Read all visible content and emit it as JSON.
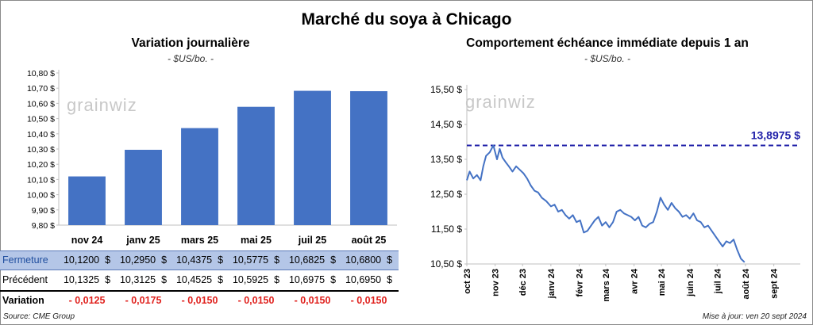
{
  "title": "Marché du soya à Chicago",
  "left_panel": {
    "title": "Variation  journalière",
    "unit": "- $US/bo. -"
  },
  "right_panel": {
    "title": "Comportement  échéance immédiate depuis 1 an",
    "unit": "- $US/bo. -",
    "reference_label": "13,8975 $"
  },
  "table": {
    "rows": [
      {
        "label": "Fermeture",
        "values": [
          "10,1200  $",
          "10,2950  $",
          "10,4375  $",
          "10,5775  $",
          "10,6825  $",
          "10,6800  $"
        ]
      },
      {
        "label": "Précédent",
        "values": [
          "10,1325  $",
          "10,3125  $",
          "10,4525  $",
          "10,5925  $",
          "10,6975  $",
          "10,6950  $"
        ]
      },
      {
        "label": "Variation",
        "values": [
          "- 0,0125",
          "- 0,0175",
          "- 0,0150",
          "- 0,0150",
          "- 0,0150",
          "- 0,0150"
        ]
      }
    ]
  },
  "footer": {
    "source": "Source: CME Group",
    "updated": "Mise à jour: ven 20 sept 2024"
  },
  "colors": {
    "bar": "#4472c4",
    "line": "#4472c4",
    "reference": "#1f1fa8",
    "negative": "#e0211d",
    "close_row": "#b4c6e7"
  },
  "chart_data": [
    {
      "type": "bar",
      "title": "Variation  journalière",
      "ylabel": "- $US/bo. -",
      "categories": [
        "nov 24",
        "janv 25",
        "mars 25",
        "mai 25",
        "juil 25",
        "août 25"
      ],
      "values": [
        10.12,
        10.295,
        10.4375,
        10.5775,
        10.6825,
        10.68
      ],
      "ylim": [
        9.8,
        10.8
      ],
      "yticks": [
        9.8,
        9.9,
        10.0,
        10.1,
        10.2,
        10.3,
        10.4,
        10.5,
        10.6,
        10.7,
        10.8
      ],
      "ytick_labels": [
        "9,80 $",
        "9,90 $",
        "10,00 $",
        "10,10 $",
        "10,20 $",
        "10,30 $",
        "10,40 $",
        "10,50 $",
        "10,60 $",
        "10,70 $",
        "10,80 $"
      ],
      "grid": false,
      "watermark": "grainwiz"
    },
    {
      "type": "line",
      "title": "Comportement  échéance immédiate depuis 1 an",
      "ylabel": "- $US/bo. -",
      "ylim": [
        10.5,
        15.5
      ],
      "yticks": [
        10.5,
        11.5,
        12.5,
        13.5,
        14.5,
        15.5
      ],
      "ytick_labels": [
        "10,50 $",
        "11,50 $",
        "12,50 $",
        "13,50 $",
        "14,50 $",
        "15,50 $"
      ],
      "xticks": [
        "oct 23",
        "nov 23",
        "déc 23",
        "janv 24",
        "févr 24",
        "mars 24",
        "avr 24",
        "mai 24",
        "juin 24",
        "juil 24",
        "août 24",
        "sept 24"
      ],
      "reference_line": {
        "value": 13.8975,
        "label": "13,8975 $",
        "style": "dashed"
      },
      "series": [
        {
          "x": [
            "2023-10-01",
            "2023-10-04",
            "2023-10-08",
            "2023-10-12",
            "2023-10-16",
            "2023-10-19",
            "2023-10-22",
            "2023-10-26",
            "2023-10-30",
            "2023-11-03",
            "2023-11-06",
            "2023-11-09",
            "2023-11-13",
            "2023-11-16",
            "2023-11-20",
            "2023-11-24",
            "2023-11-28",
            "2023-12-02",
            "2023-12-06",
            "2023-12-10",
            "2023-12-14",
            "2023-12-18",
            "2023-12-22",
            "2023-12-27",
            "2024-01-01",
            "2024-01-05",
            "2024-01-09",
            "2024-01-13",
            "2024-01-17",
            "2024-01-21",
            "2024-01-25",
            "2024-01-29",
            "2024-02-02",
            "2024-02-06",
            "2024-02-10",
            "2024-02-14",
            "2024-02-18",
            "2024-02-22",
            "2024-02-26",
            "2024-03-01",
            "2024-03-05",
            "2024-03-09",
            "2024-03-13",
            "2024-03-17",
            "2024-03-21",
            "2024-03-25",
            "2024-03-29",
            "2024-04-02",
            "2024-04-06",
            "2024-04-10",
            "2024-04-14",
            "2024-04-18",
            "2024-04-22",
            "2024-04-26",
            "2024-04-30",
            "2024-05-04",
            "2024-05-08",
            "2024-05-12",
            "2024-05-16",
            "2024-05-20",
            "2024-05-24",
            "2024-05-28",
            "2024-06-01",
            "2024-06-05",
            "2024-06-09",
            "2024-06-13",
            "2024-06-17",
            "2024-06-21",
            "2024-06-25",
            "2024-06-29",
            "2024-07-03",
            "2024-07-07",
            "2024-07-11",
            "2024-07-15",
            "2024-07-19",
            "2024-07-23",
            "2024-07-27",
            "2024-07-31"
          ],
          "y": [
            12.9,
            13.15,
            12.95,
            13.05,
            12.9,
            13.3,
            13.6,
            13.7,
            13.9,
            13.5,
            13.8,
            13.55,
            13.4,
            13.3,
            13.15,
            13.3,
            13.2,
            13.1,
            12.95,
            12.75,
            12.6,
            12.55,
            12.4,
            12.3,
            12.15,
            12.2,
            12.0,
            12.05,
            11.9,
            11.8,
            11.9,
            11.7,
            11.75,
            11.4,
            11.45,
            11.6,
            11.75,
            11.85,
            11.6,
            11.7,
            11.55,
            11.7,
            12.0,
            12.05,
            11.95,
            11.9,
            11.85,
            11.75,
            11.85,
            11.6,
            11.55,
            11.65,
            11.7,
            12.0,
            12.4,
            12.2,
            12.05,
            12.25,
            12.1,
            12.0,
            11.85,
            11.9,
            11.8,
            11.95,
            11.75,
            11.7,
            11.55,
            11.6,
            11.45,
            11.3,
            11.15,
            11.0,
            11.15,
            11.1,
            11.2,
            10.9,
            10.65,
            10.55
          ]
        }
      ]
    }
  ]
}
